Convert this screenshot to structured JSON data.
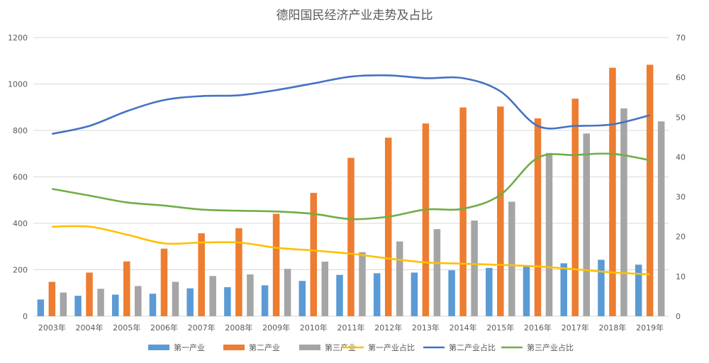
{
  "chart_data": {
    "type": "bar",
    "title": "德阳国民经济产业走势及占比",
    "categories": [
      "2003年",
      "2004年",
      "2005年",
      "2006年",
      "2007年",
      "2008年",
      "2009年",
      "2010年",
      "2011年",
      "2012年",
      "2013年",
      "2014年",
      "2015年",
      "2016年",
      "2017年",
      "2018年",
      "2019年"
    ],
    "ylim": [
      0,
      1200
    ],
    "yticks": [
      0,
      200,
      400,
      600,
      800,
      1000,
      1200
    ],
    "y2lim": [
      0,
      70
    ],
    "y2ticks": [
      0,
      10,
      20,
      30,
      40,
      50,
      60,
      70
    ],
    "grid": true,
    "legend_position": "bottom",
    "series": [
      {
        "name": "第一产业",
        "kind": "bar",
        "axis": "left",
        "color": "#5b9bd5",
        "values": [
          72,
          88,
          93,
          97,
          120,
          125,
          133,
          152,
          178,
          185,
          188,
          198,
          208,
          215,
          228,
          243,
          222
        ]
      },
      {
        "name": "第二产业",
        "kind": "bar",
        "axis": "left",
        "color": "#ed7d31",
        "values": [
          148,
          188,
          236,
          291,
          357,
          379,
          441,
          531,
          682,
          769,
          830,
          899,
          903,
          852,
          937,
          1070,
          1083
        ]
      },
      {
        "name": "第三产业",
        "kind": "bar",
        "axis": "left",
        "color": "#a5a5a5",
        "values": [
          102,
          118,
          130,
          148,
          173,
          180,
          204,
          235,
          276,
          322,
          375,
          412,
          493,
          703,
          787,
          895,
          839
        ]
      },
      {
        "name": "第一产业占比",
        "kind": "line",
        "axis": "right",
        "color": "#ffc000",
        "values": [
          22.5,
          22.5,
          20.5,
          18.3,
          18.5,
          18.5,
          17.2,
          16.5,
          15.7,
          14.5,
          13.5,
          13.2,
          12.9,
          12.5,
          11.8,
          11.0,
          10.5
        ]
      },
      {
        "name": "第二产业占比",
        "kind": "line",
        "axis": "right",
        "color": "#4472c4",
        "values": [
          45.8,
          47.8,
          51.5,
          54.3,
          55.3,
          55.5,
          56.8,
          58.5,
          60.2,
          60.5,
          59.8,
          59.8,
          56.5,
          47.8,
          47.8,
          48.2,
          50.5
        ]
      },
      {
        "name": "第三产业占比",
        "kind": "line",
        "axis": "right",
        "color": "#70ad47",
        "values": [
          32.0,
          30.3,
          28.6,
          27.8,
          26.8,
          26.5,
          26.3,
          25.7,
          24.4,
          25.0,
          26.8,
          27.0,
          30.5,
          39.8,
          40.5,
          40.8,
          39.2
        ]
      }
    ]
  }
}
